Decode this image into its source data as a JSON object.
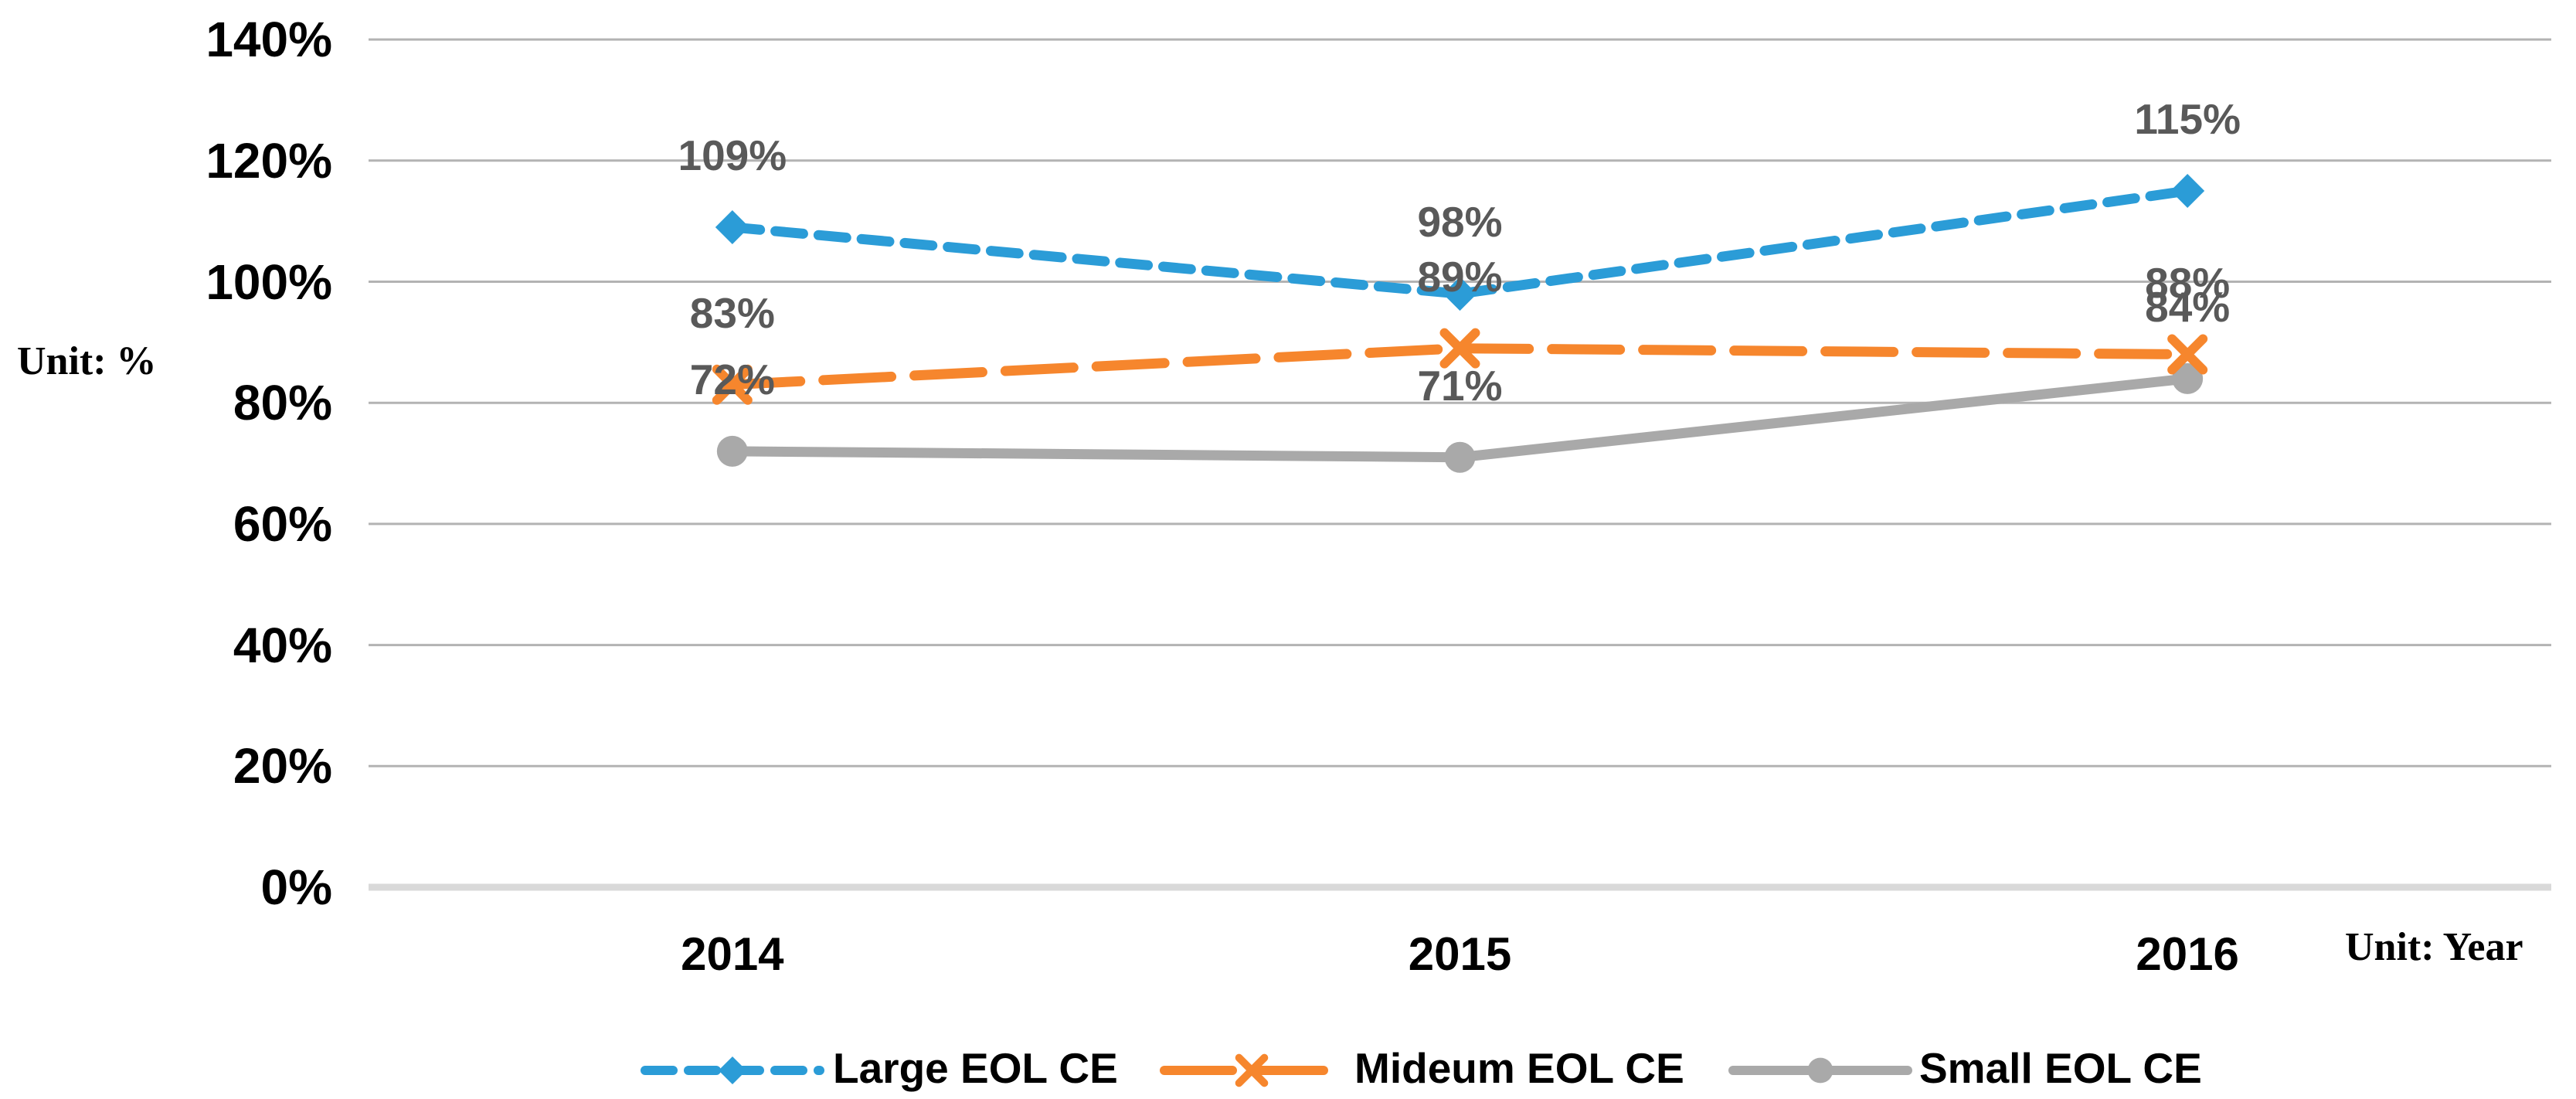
{
  "chart_data": {
    "type": "line",
    "title": "",
    "x_categories": [
      "2014",
      "2015",
      "2016"
    ],
    "x_unit_label": "Unit: Year",
    "y_unit_label": "Unit: %",
    "y_axis": {
      "tick_labels": [
        "140%",
        "120%",
        "100%",
        "80%",
        "60%",
        "40%",
        "20%",
        "0%"
      ],
      "tick_values": [
        140,
        120,
        100,
        80,
        60,
        40,
        20,
        0
      ],
      "ylim": [
        0,
        140
      ]
    },
    "grid": true,
    "legend_position": "bottom",
    "series": [
      {
        "name": "Large EOL CE",
        "values": [
          109,
          98,
          115
        ],
        "point_labels": [
          "109%",
          "98%",
          "115%"
        ],
        "color": "#2B9CD7",
        "line_style": "dashed-short",
        "marker": "diamond"
      },
      {
        "name": "Mideum EOL CE",
        "values": [
          83,
          89,
          88
        ],
        "point_labels": [
          "83%",
          "89%",
          "88%"
        ],
        "color": "#F6862D",
        "line_style": "dashed-long",
        "marker": "x"
      },
      {
        "name": "Small EOL CE",
        "values": [
          72,
          71,
          84
        ],
        "point_labels": [
          "72%",
          "71%",
          "84%"
        ],
        "color": "#A9A9A9",
        "line_style": "solid",
        "marker": "circle"
      }
    ],
    "colors": {
      "data_label": "#595959",
      "gridline": "#B3B3B3",
      "axis_line": "#D9D9D9",
      "axis_text": "#000000"
    }
  }
}
